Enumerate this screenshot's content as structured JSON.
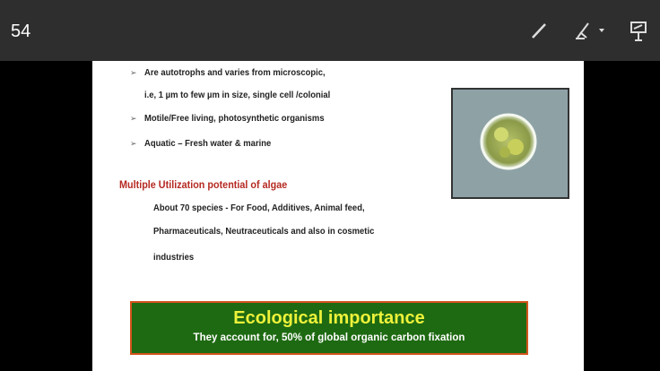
{
  "toolbar": {
    "slide_number": "54"
  },
  "slide": {
    "bullets": [
      [
        "Are autotrophs and varies from microscopic,",
        "i.e, 1 µm to few µm in size, single cell /colonial"
      ],
      [
        "Motile/Free living, photosynthetic organisms"
      ],
      [
        "Aquatic – Fresh water & marine"
      ]
    ],
    "heading": "Multiple Utilization potential of algae",
    "paragraph_lines": [
      "About 70 species - For Food,  Additives, Animal feed,",
      "Pharmaceuticals, Neutraceuticals and also in cosmetic",
      "industries"
    ],
    "box": {
      "title": "Ecological importance",
      "subtitle": "They account for, 50% of global organic carbon fixation"
    }
  }
}
